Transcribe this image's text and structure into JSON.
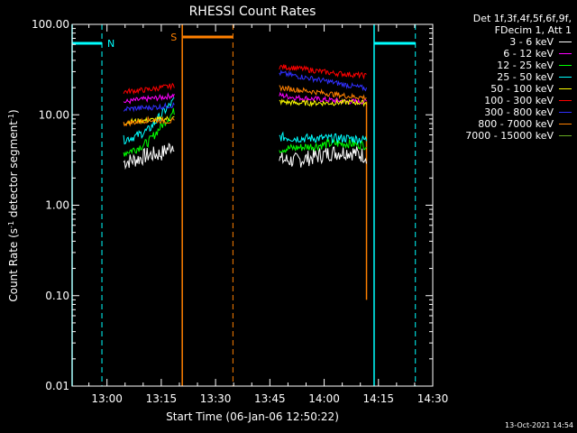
{
  "chart_data": {
    "type": "line",
    "title": "RHESSI Count Rates",
    "xlabel": "Start Time (06-Jan-06 12:50:22)",
    "ylabel_parts": [
      "Count Rate (s",
      "-1",
      " detector segment",
      "-1",
      ")"
    ],
    "y_scale": "log",
    "ylim": [
      0.01,
      100
    ],
    "xlim_minutes": [
      770.37,
      870
    ],
    "yticks": [
      {
        "value": 0.01,
        "label": "0.01"
      },
      {
        "value": 0.1,
        "label": "0.10"
      },
      {
        "value": 1,
        "label": "1.00"
      },
      {
        "value": 10,
        "label": "10.00"
      },
      {
        "value": 100,
        "label": "100.00"
      }
    ],
    "xticks": [
      {
        "value": 780,
        "label": "13:00"
      },
      {
        "value": 795,
        "label": "13:15"
      },
      {
        "value": 810,
        "label": "13:30"
      },
      {
        "value": 825,
        "label": "13:45"
      },
      {
        "value": 840,
        "label": "14:00"
      },
      {
        "value": 855,
        "label": "14:15"
      },
      {
        "value": 870,
        "label": "14:30"
      }
    ],
    "legend": {
      "header": [
        "Det 1f,3f,4f,5f,6f,9f,",
        "FDecim 1, Att 1"
      ],
      "placement": "top-right outside"
    },
    "series": [
      {
        "name": "3 - 6 keV",
        "color": "#ffffff",
        "seg1": {
          "x": [
            784.6,
            788.0,
            791.5,
            795.0,
            798.6
          ],
          "y": [
            3.0,
            3.2,
            3.6,
            3.7,
            4.8
          ]
        },
        "seg2": {
          "x": [
            827.6,
            832.0,
            837.0,
            842.0,
            847.0,
            851.7
          ],
          "y": [
            3.2,
            3.1,
            3.4,
            3.8,
            3.9,
            3.5
          ]
        }
      },
      {
        "name": "6 - 12 keV",
        "color": "#ff00ff",
        "seg1": {
          "x": [
            784.6,
            788.0,
            791.5,
            795.0,
            798.6
          ],
          "y": [
            13.8,
            14.5,
            15.0,
            15.5,
            16.5
          ]
        },
        "seg2": {
          "x": [
            827.6,
            832.0,
            837.0,
            842.0,
            847.0,
            851.7
          ],
          "y": [
            16.5,
            15.5,
            15.0,
            14.5,
            14.0,
            14.0
          ]
        }
      },
      {
        "name": "12 - 25 keV",
        "color": "#00ff00",
        "seg1": {
          "x": [
            784.6,
            788.0,
            791.5,
            795.0,
            798.6
          ],
          "y": [
            3.8,
            4.2,
            5.0,
            7.5,
            11.0
          ]
        },
        "seg2": {
          "x": [
            827.6,
            832.0,
            837.0,
            842.0,
            847.0,
            851.7
          ],
          "y": [
            4.2,
            4.3,
            4.5,
            4.8,
            4.8,
            4.6
          ]
        }
      },
      {
        "name": "25 - 50 keV",
        "color": "#00ffff",
        "seg1": {
          "x": [
            784.6,
            788.0,
            791.5,
            795.0,
            798.6
          ],
          "y": [
            5.3,
            5.8,
            6.8,
            10.0,
            14.5
          ]
        },
        "seg2": {
          "x": [
            827.6,
            832.0,
            837.0,
            842.0,
            847.0,
            851.7
          ],
          "y": [
            5.7,
            5.5,
            5.5,
            5.5,
            5.5,
            5.3
          ]
        }
      },
      {
        "name": "50 - 100 keV",
        "color": "#ffff00",
        "seg1": {
          "x": [
            784.6,
            788.0,
            791.5,
            795.0,
            798.6
          ],
          "y": [
            8.2,
            8.5,
            8.7,
            8.9,
            9.2
          ]
        },
        "seg2": {
          "x": [
            827.6,
            832.0,
            837.0,
            842.0,
            847.0,
            851.7
          ],
          "y": [
            14.0,
            13.5,
            13.5,
            13.5,
            13.8,
            13.5
          ]
        }
      },
      {
        "name": "100 - 300 keV",
        "color": "#ff0000",
        "seg1": {
          "x": [
            784.6,
            788.0,
            791.5,
            795.0,
            798.6
          ],
          "y": [
            18.0,
            18.5,
            19.0,
            20.0,
            21.0
          ]
        },
        "seg2": {
          "x": [
            827.6,
            832.0,
            837.0,
            842.0,
            847.0,
            851.7
          ],
          "y": [
            34.0,
            33.0,
            31.0,
            29.0,
            28.0,
            27.0
          ]
        }
      },
      {
        "name": "300 - 800 keV",
        "color": "#3030ff",
        "seg1": {
          "x": [
            784.6,
            788.0,
            791.5,
            795.0,
            798.6
          ],
          "y": [
            11.5,
            11.8,
            12.0,
            12.3,
            12.8
          ]
        },
        "seg2": {
          "x": [
            827.6,
            832.0,
            837.0,
            842.0,
            847.0,
            851.7
          ],
          "y": [
            29.0,
            27.0,
            25.0,
            23.0,
            21.0,
            19.5
          ]
        }
      },
      {
        "name": "800 - 7000 keV",
        "color": "#ff8000",
        "seg1": {
          "x": [
            784.6,
            788.0,
            791.5,
            795.0,
            798.6
          ],
          "y": [
            8.0,
            8.3,
            8.8,
            8.6,
            8.4
          ]
        },
        "seg2": {
          "x": [
            827.6,
            832.0,
            837.0,
            842.0,
            847.0,
            851.7
          ],
          "y": [
            20.0,
            19.0,
            18.0,
            17.0,
            16.0,
            15.5
          ]
        }
      },
      {
        "name": "7000 - 15000 keV",
        "color": "#66aa22",
        "seg1": {
          "x": [],
          "y": []
        },
        "seg2": {
          "x": [],
          "y": []
        }
      }
    ],
    "flags": {
      "night_color": "#00ffff",
      "saa_color": "#ff8000",
      "night_label": "N",
      "saa_label": "S",
      "night_bars": [
        [
          770.37,
          778.6
        ],
        [
          853.8,
          865.2
        ]
      ],
      "night_solid_lines": [
        770.37,
        853.8
      ],
      "night_dashed_lines": [
        778.6,
        865.2
      ],
      "saa_bar": [
        800.8,
        814.8
      ],
      "saa_solid_line": 800.8,
      "saa_dashed_line": 814.8,
      "saa_drop_x": 851.7
    },
    "grid": false
  },
  "timestamp": "13-Oct-2021 14:54"
}
